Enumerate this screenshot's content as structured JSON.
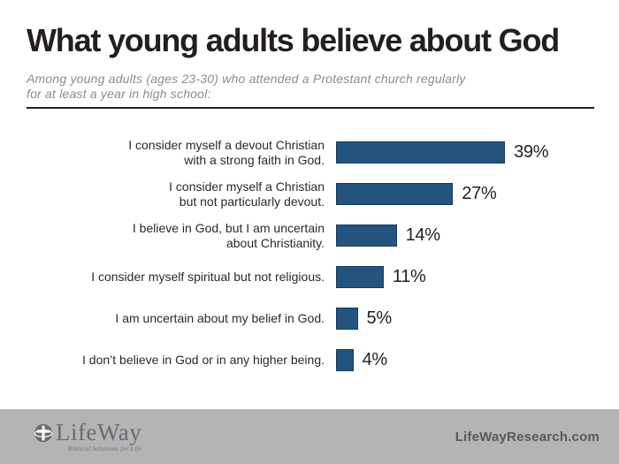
{
  "header": {
    "title": "What young adults believe about God",
    "subtitle": "Among young adults (ages 23-30) who attended a Protestant church regularly\nfor at least a year in high school:"
  },
  "chart_data": {
    "type": "bar",
    "orientation": "horizontal",
    "title": "What young adults believe about God",
    "subtitle": "Among young adults (ages 23-30) who attended a Protestant church regularly for at least a year in high school:",
    "categories": [
      "I consider myself a devout Christian\nwith a strong faith in God.",
      "I consider myself a Christian\nbut not particularly devout.",
      "I believe in God, but I am uncertain\nabout Christianity.",
      "I consider myself spiritual but not religious.",
      "I am uncertain about my belief in God.",
      "I don’t believe in God or in any higher being."
    ],
    "values": [
      39,
      27,
      14,
      11,
      5,
      4
    ],
    "value_labels": [
      "39%",
      "27%",
      "14%",
      "11%",
      "5%",
      "4%"
    ],
    "xlabel": "",
    "ylabel": "",
    "xlim": [
      0,
      43
    ],
    "grid": false,
    "legend": false,
    "bar_color": "#24547E"
  },
  "footer": {
    "logo_name": "LifeWay",
    "logo_tagline": "Biblical Solutions for Life",
    "website": "LifeWayResearch.com"
  },
  "colors": {
    "bar_fill": "#24547E",
    "bar_border": "#173B5E",
    "title_text": "#231F20",
    "subtitle_text": "#8A8C8E",
    "footer_bg": "#B3B4B6",
    "footer_text": "#58595B"
  }
}
